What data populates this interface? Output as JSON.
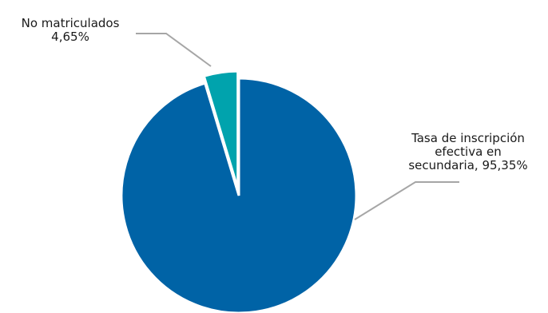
{
  "chart_data": {
    "type": "pie",
    "title": "",
    "slices": [
      {
        "name": "No matriculados",
        "value": 4.65,
        "label_lines": [
          "No matriculados",
          "4,65%"
        ],
        "color": "#00a3ad"
      },
      {
        "name": "Tasa de inscripción efectiva en secundaria",
        "value": 95.35,
        "label_lines": [
          "Tasa de inscripción",
          "efectiva en",
          "secundaria, 95,35%"
        ],
        "color": "#0063a6"
      }
    ]
  }
}
